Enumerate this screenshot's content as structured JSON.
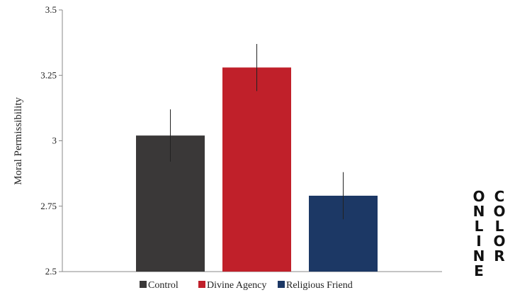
{
  "chart_data": {
    "type": "bar",
    "categories": [
      "Control",
      "Divine Agency",
      "Religious Friend"
    ],
    "values": [
      3.02,
      3.28,
      2.79
    ],
    "error": [
      0.1,
      0.09,
      0.09
    ],
    "colors": [
      "#3a3838",
      "#c0202a",
      "#1c3865"
    ],
    "ylabel": "Moral Permissibility",
    "ylim": [
      2.5,
      3.5
    ],
    "yticks": [
      2.5,
      2.75,
      3,
      3.25,
      3.5
    ],
    "ytick_labels": [
      "2.5",
      "2.75",
      "3",
      "3.25",
      "3.5"
    ],
    "legend": {
      "placement": "bottom",
      "entries": [
        "Control",
        "Divine Agency",
        "Religious Friend"
      ]
    }
  },
  "side_label": {
    "col1": "ONLINE",
    "col2": "COLOR"
  }
}
